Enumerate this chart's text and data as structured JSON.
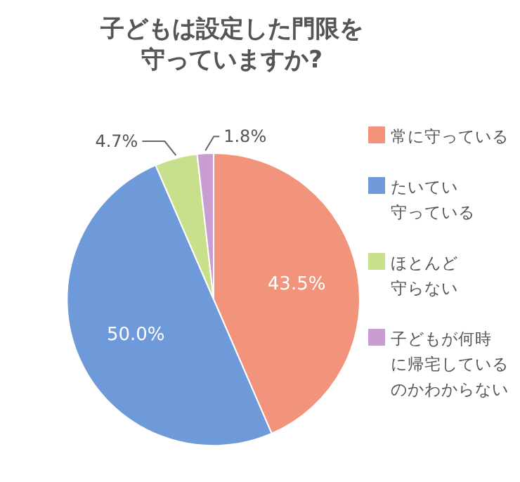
{
  "chart_data": {
    "type": "pie",
    "title": "子どもは設定した門限を守っていますか?",
    "categories": [
      "常に守っている",
      "たいてい守っている",
      "ほとんど守らない",
      "子どもが何時に帰宅しているのかわからない"
    ],
    "values": [
      43.5,
      50.0,
      4.7,
      1.8
    ],
    "value_labels": [
      "43.5%",
      "50.0%",
      "4.7%",
      "1.8%"
    ],
    "colors": [
      "#f2937c",
      "#6e9ad9",
      "#c8e08c",
      "#c99cd2"
    ],
    "legend": "right"
  }
}
